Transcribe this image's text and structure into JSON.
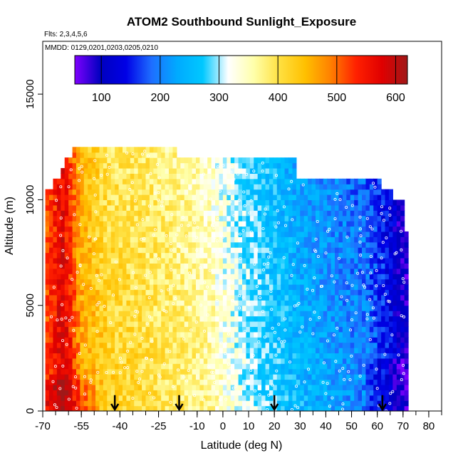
{
  "chart_data": {
    "type": "heatmap",
    "title": "ATOM2 Southbound Sunlight_Exposure",
    "flights_note": "Flts: 2,3,4,5,6",
    "dates_note": "MMDD: 0129,0201,0203,0205,0210",
    "xlabel": "Latitude (deg N)",
    "ylabel": "Altitude (m)",
    "xlim": [
      -70,
      85
    ],
    "ylim": [
      0,
      17500
    ],
    "x_tick_labels": [
      "-70",
      "-55",
      "-40",
      "-25",
      "-10",
      "0",
      "10",
      "20",
      "30",
      "40",
      "50",
      "60",
      "70",
      "80"
    ],
    "x_tick_values": [
      -70,
      -55,
      -40,
      -25,
      -10,
      0,
      10,
      20,
      30,
      40,
      50,
      60,
      70,
      80
    ],
    "y_tick_labels": [
      "0",
      "5000",
      "10000",
      "15000"
    ],
    "y_tick_values": [
      0,
      5000,
      10000,
      15000
    ],
    "colorbar": {
      "range": [
        55,
        620
      ],
      "tick_labels": [
        "100",
        "200",
        "300",
        "400",
        "500",
        "600"
      ],
      "tick_values": [
        100,
        200,
        300,
        400,
        500,
        600
      ],
      "colors": [
        "#7f00ff",
        "#0000bf",
        "#0000e6",
        "#1e6eff",
        "#00aaff",
        "#00c8ff",
        "#ffffff",
        "#ffffaa",
        "#ffe040",
        "#ffc000",
        "#ff8000",
        "#ff2000",
        "#e00000",
        "#a01818"
      ]
    },
    "field_extent": {
      "lat_range": [
        -69,
        72
      ],
      "top_altitude_by_lat": [
        {
          "lat": -69,
          "alt": 10500
        },
        {
          "lat": -66,
          "alt": 11000
        },
        {
          "lat": -63,
          "alt": 11500
        },
        {
          "lat": -61,
          "alt": 12000
        },
        {
          "lat": -58,
          "alt": 12500
        },
        {
          "lat": -20,
          "alt": 12500
        },
        {
          "lat": -18,
          "alt": 12000
        },
        {
          "lat": 26,
          "alt": 12000
        },
        {
          "lat": 28,
          "alt": 11000
        },
        {
          "lat": 58,
          "alt": 11000
        },
        {
          "lat": 62,
          "alt": 10500
        },
        {
          "lat": 66,
          "alt": 10000
        },
        {
          "lat": 70,
          "alt": 8500
        },
        {
          "lat": 72,
          "alt": 8500
        }
      ]
    },
    "sunlight_exposure_by_latitude": [
      {
        "lat": -69,
        "value": 520
      },
      {
        "lat": -62,
        "value": 590
      },
      {
        "lat": -55,
        "value": 470
      },
      {
        "lat": -45,
        "value": 425
      },
      {
        "lat": -30,
        "value": 410
      },
      {
        "lat": -15,
        "value": 385
      },
      {
        "lat": -5,
        "value": 365
      },
      {
        "lat": 5,
        "value": 320
      },
      {
        "lat": 15,
        "value": 290
      },
      {
        "lat": 25,
        "value": 265
      },
      {
        "lat": 35,
        "value": 240
      },
      {
        "lat": 45,
        "value": 220
      },
      {
        "lat": 55,
        "value": 205
      },
      {
        "lat": 62,
        "value": 170
      },
      {
        "lat": 68,
        "value": 120
      },
      {
        "lat": 72,
        "value": 95
      }
    ],
    "profile_markers_lat": [
      -42,
      -17,
      20,
      62
    ]
  }
}
